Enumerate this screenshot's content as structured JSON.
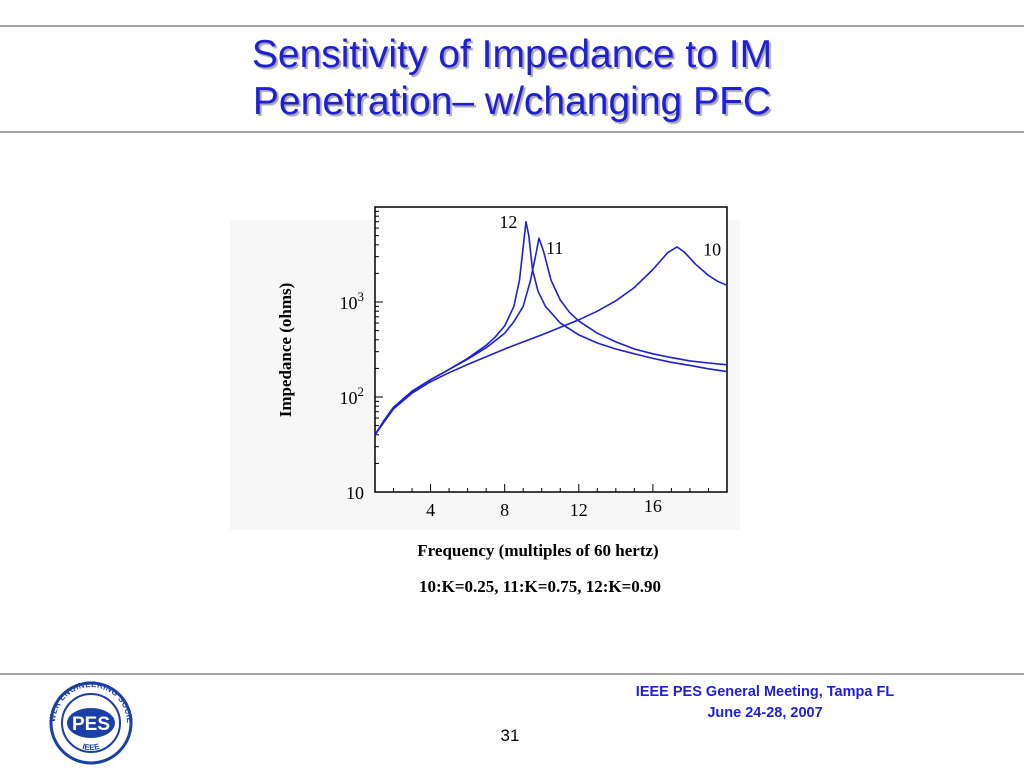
{
  "slide": {
    "title_line1": "Sensitivity of Impedance to IM",
    "title_line2": "Penetration– w/changing PFC",
    "footer_line1": "IEEE PES General Meeting, Tampa FL",
    "footer_line2": "June 24-28, 2007",
    "page_number": "31",
    "logo_text": "PES",
    "logo_ring_text_top": "POWER ENGINEERING SOCIETY",
    "logo_ring_text_bottom": "IEEE"
  },
  "colors": {
    "title": "#1f1fd6",
    "curve": "#2020d0",
    "rule": "#a3a3a3",
    "logo": "#1a3fa6"
  },
  "chart_data": {
    "type": "line",
    "xlabel": "Frequency (multiples of 60 hertz)",
    "ylabel": "Impedance (ohms)",
    "caption": "10:K=0.25, 11:K=0.75, 12:K=0.90",
    "x_scale": "linear",
    "y_scale": "log",
    "xlim": [
      1,
      20
    ],
    "ylim": [
      10,
      10000
    ],
    "x_ticks": [
      4,
      8,
      12,
      16
    ],
    "y_ticks": [
      {
        "value": 10,
        "base": "10",
        "exp": ""
      },
      {
        "value": 100,
        "base": "10",
        "exp": "2"
      },
      {
        "value": 1000,
        "base": "10",
        "exp": "3"
      }
    ],
    "grid": false,
    "series": [
      {
        "name": "10",
        "x": [
          1,
          1.5,
          2,
          3,
          4,
          5,
          6,
          7,
          8,
          9,
          10,
          11,
          12,
          13,
          14,
          15,
          16,
          16.8,
          17.3,
          17.7,
          18.3,
          19,
          19.5,
          20
        ],
        "y": [
          40,
          55,
          75,
          110,
          145,
          180,
          220,
          265,
          320,
          380,
          450,
          540,
          650,
          800,
          1030,
          1420,
          2200,
          3300,
          3800,
          3350,
          2500,
          1900,
          1650,
          1500
        ]
      },
      {
        "name": "11",
        "x": [
          1,
          1.5,
          2,
          3,
          4,
          5,
          6,
          7,
          8,
          8.5,
          9,
          9.4,
          9.7,
          9.85,
          10.1,
          10.5,
          11,
          11.5,
          12,
          13,
          14,
          15,
          16,
          17,
          18,
          19,
          20
        ],
        "y": [
          40,
          57,
          78,
          115,
          152,
          195,
          250,
          330,
          470,
          620,
          900,
          1700,
          3300,
          4700,
          3400,
          1700,
          1050,
          780,
          630,
          470,
          380,
          320,
          285,
          260,
          240,
          228,
          218
        ]
      },
      {
        "name": "12",
        "x": [
          1,
          1.5,
          2,
          3,
          4,
          5,
          6,
          7,
          7.5,
          8,
          8.5,
          8.8,
          9,
          9.15,
          9.3,
          9.5,
          9.8,
          10.2,
          11,
          12,
          13,
          14,
          15,
          16,
          17,
          18,
          19,
          20
        ],
        "y": [
          40,
          57,
          78,
          115,
          152,
          195,
          255,
          350,
          430,
          560,
          900,
          1700,
          3800,
          7000,
          5000,
          2200,
          1300,
          900,
          600,
          450,
          370,
          320,
          285,
          255,
          232,
          215,
          198,
          185
        ]
      }
    ],
    "annotations": [
      {
        "text": "12",
        "x": 8.2,
        "y": 6000
      },
      {
        "text": "11",
        "x": 10.7,
        "y": 3200
      },
      {
        "text": "10",
        "x": 19.2,
        "y": 3100
      }
    ]
  }
}
